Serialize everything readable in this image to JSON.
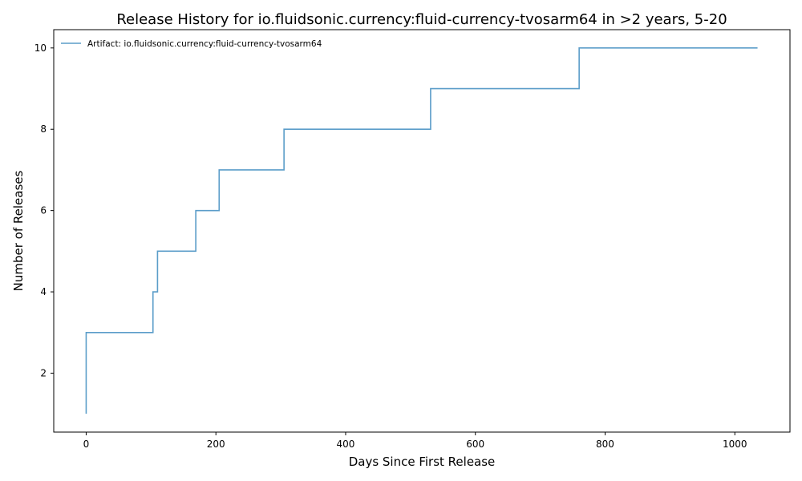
{
  "chart_data": {
    "type": "line",
    "step": "post",
    "title": "Release History for io.fluidsonic.currency:fluid-currency-tvosarm64 in >2 years, 5-20",
    "xlabel": "Days Since First Release",
    "ylabel": "Number of Releases",
    "xlim": [
      -50,
      1085
    ],
    "ylim": [
      0.55,
      10.45
    ],
    "xticks": [
      0,
      200,
      400,
      600,
      800,
      1000
    ],
    "yticks": [
      2,
      4,
      6,
      8,
      10
    ],
    "grid": false,
    "legend_position": "top-left",
    "series": [
      {
        "name": "Artifact: io.fluidsonic.currency:fluid-currency-tvosarm64",
        "color": "#5b9dc9",
        "x": [
          0,
          0,
          0,
          103,
          110,
          169,
          205,
          305,
          531,
          760,
          1035
        ],
        "y": [
          1,
          2,
          3,
          4,
          5,
          6,
          7,
          8,
          9,
          10,
          10
        ]
      }
    ]
  }
}
